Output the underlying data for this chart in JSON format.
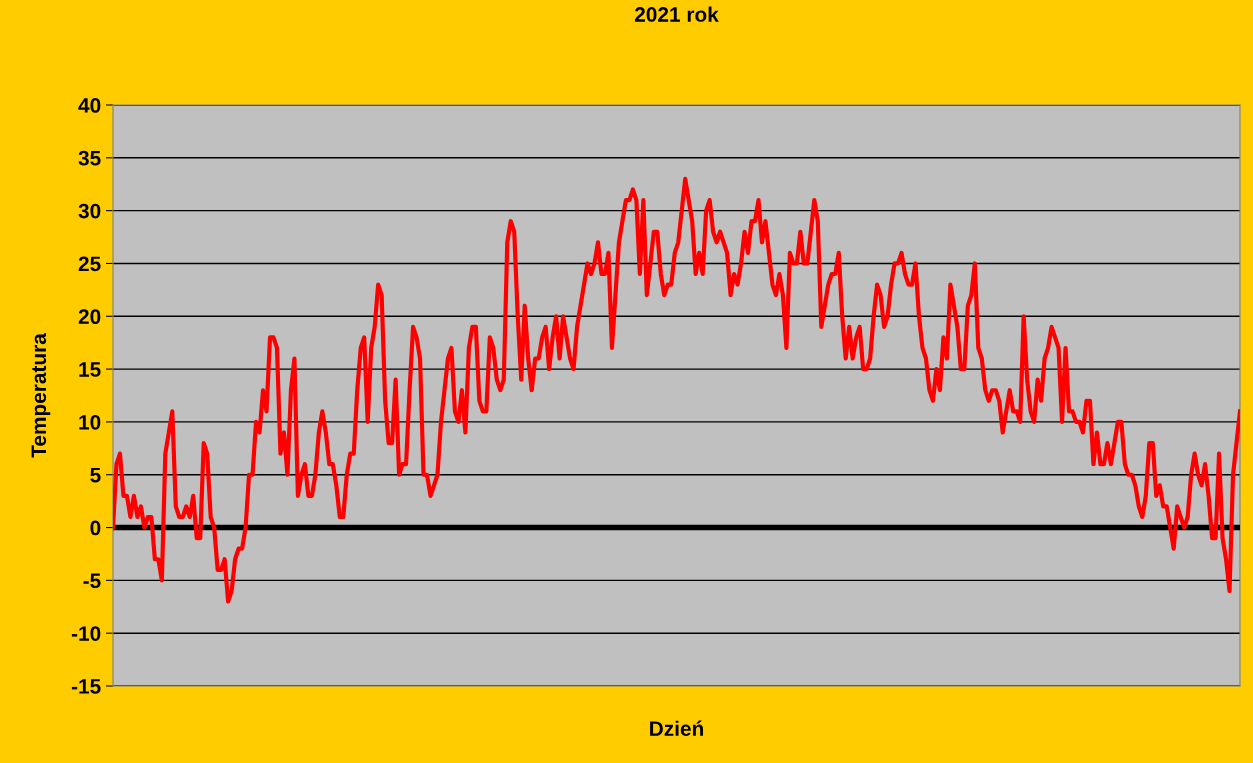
{
  "chart_data": {
    "type": "line",
    "title": "2021 rok",
    "xlabel": "Dzień",
    "ylabel": "Temperatura",
    "categories": [
      null,
      null,
      null,
      null,
      null,
      null,
      null,
      null,
      null,
      null,
      null,
      null,
      null,
      null,
      null,
      null,
      null,
      null,
      null,
      null,
      null,
      null,
      null,
      null,
      null,
      null,
      null,
      null,
      null,
      null,
      null,
      null,
      null,
      null,
      null,
      null,
      null,
      null,
      null,
      null,
      null,
      null,
      null,
      null,
      null,
      null,
      null,
      null,
      null,
      null,
      null,
      null,
      null,
      null,
      null,
      null,
      null,
      null,
      null,
      null,
      null,
      null,
      null,
      null,
      null,
      null,
      null,
      null,
      null,
      null,
      null,
      null,
      null,
      null,
      null,
      null,
      null,
      null,
      null,
      null,
      null,
      null,
      null,
      null,
      null,
      null,
      null,
      null,
      null,
      null,
      null,
      null,
      null,
      null,
      null,
      null,
      null,
      null,
      null,
      null,
      null,
      null,
      null,
      null,
      null,
      null,
      null,
      null,
      null,
      null,
      null,
      null,
      null,
      null,
      null,
      null,
      null,
      null,
      null,
      null,
      null,
      null,
      null,
      null,
      null,
      null,
      null,
      null,
      null,
      null,
      null,
      null,
      null,
      null,
      null,
      null,
      null,
      null,
      null,
      null,
      null,
      null,
      null,
      null,
      null,
      null,
      null,
      null,
      null,
      null,
      null,
      null,
      null,
      null,
      null,
      null,
      null,
      null,
      null,
      null,
      null,
      null,
      null,
      null,
      null,
      null,
      null,
      null,
      null,
      null,
      null,
      null,
      null,
      null,
      null,
      null,
      null,
      null,
      null,
      null,
      null,
      null,
      null,
      null,
      null,
      null,
      null,
      null,
      null,
      null,
      null,
      null,
      null,
      null,
      null,
      null,
      null,
      null,
      null,
      null,
      null,
      null,
      null,
      null,
      null,
      null,
      null,
      null,
      null,
      null,
      null,
      null,
      null,
      null,
      null,
      null,
      null,
      null,
      null,
      null,
      null,
      null,
      null,
      null,
      null,
      null,
      null,
      null,
      null,
      null,
      null,
      null,
      null,
      null,
      null,
      null,
      null,
      null,
      null,
      null,
      null,
      null,
      null,
      null,
      null,
      null,
      null,
      null,
      null,
      null,
      null,
      null,
      null,
      null,
      null,
      null,
      null,
      null,
      null,
      null,
      null,
      null,
      null,
      null,
      null,
      null,
      null,
      null,
      null,
      null,
      null,
      null,
      null,
      null,
      null,
      null,
      null,
      null,
      null,
      null,
      null,
      null,
      null,
      null,
      null,
      null,
      null,
      null,
      null,
      null,
      null,
      null,
      null,
      null,
      null,
      null,
      null,
      null,
      null,
      null,
      null,
      null,
      null,
      null,
      null,
      null,
      null,
      null,
      null,
      null,
      null,
      null,
      null,
      null,
      null,
      null,
      null,
      null,
      null,
      null,
      null,
      null,
      null,
      null
    ],
    "series": [
      {
        "color": "#ff0000",
        "values": [
          0,
          6,
          7,
          3,
          3,
          1,
          3,
          1,
          2,
          0,
          1,
          1,
          -3,
          -3,
          -5,
          7,
          9,
          11,
          2,
          1,
          1,
          2,
          1,
          3,
          -1,
          -1,
          8,
          7,
          1,
          0,
          -4,
          -4,
          -3,
          -7,
          -6,
          -3,
          -2,
          -2,
          0,
          5,
          5,
          10,
          9,
          13,
          11,
          18,
          18,
          17,
          7,
          9,
          5,
          13,
          16,
          3,
          5,
          6,
          3,
          3,
          5,
          9,
          11,
          9,
          6,
          6,
          4,
          1,
          1,
          5,
          7,
          7,
          13,
          17,
          18,
          10,
          17,
          19,
          23,
          22,
          12,
          8,
          8,
          14,
          5,
          6,
          6,
          13,
          19,
          18,
          16,
          5,
          5,
          3,
          4,
          5,
          10,
          13,
          16,
          17,
          11,
          10,
          13,
          9,
          17,
          19,
          19,
          12,
          11,
          11,
          18,
          17,
          14,
          13,
          14,
          27,
          29,
          28,
          20,
          14,
          21,
          16,
          13,
          16,
          16,
          18,
          19,
          15,
          18,
          20,
          16,
          20,
          18,
          16,
          15,
          19,
          21,
          23,
          25,
          24,
          25,
          27,
          24,
          24,
          26,
          17,
          22,
          27,
          29,
          31,
          31,
          32,
          31,
          24,
          31,
          22,
          25,
          28,
          28,
          24,
          22,
          23,
          23,
          26,
          27,
          30,
          33,
          31,
          29,
          24,
          26,
          24,
          30,
          31,
          28,
          27,
          28,
          27,
          26,
          22,
          24,
          23,
          25,
          28,
          26,
          29,
          29,
          31,
          27,
          29,
          26,
          23,
          22,
          24,
          22,
          17,
          26,
          25,
          25,
          28,
          25,
          25,
          28,
          31,
          29,
          19,
          21,
          23,
          24,
          24,
          26,
          20,
          16,
          19,
          16,
          18,
          19,
          15,
          15,
          16,
          20,
          23,
          22,
          19,
          20,
          23,
          25,
          25,
          26,
          24,
          23,
          23,
          25,
          20,
          17,
          16,
          13,
          12,
          15,
          13,
          18,
          16,
          23,
          21,
          19,
          15,
          15,
          21,
          22,
          25,
          17,
          16,
          13,
          12,
          13,
          13,
          12,
          9,
          11,
          13,
          11,
          11,
          10,
          20,
          14,
          11,
          10,
          14,
          12,
          16,
          17,
          19,
          18,
          17,
          10,
          17,
          11,
          11,
          10,
          10,
          9,
          12,
          12,
          6,
          9,
          6,
          6,
          8,
          6,
          8,
          10,
          10,
          6,
          5,
          5,
          4,
          2,
          1,
          3,
          8,
          8,
          3,
          4,
          2,
          2,
          0,
          -2,
          2,
          1,
          0,
          1,
          5,
          7,
          5,
          4,
          6,
          3,
          -1,
          -1,
          7,
          -1,
          -3,
          -6,
          5,
          8,
          11
        ]
      }
    ],
    "ylim": [
      -15,
      40
    ],
    "yticks": [
      -15,
      -10,
      -5,
      0,
      5,
      10,
      15,
      20,
      25,
      30,
      35,
      40
    ],
    "grid": "y",
    "tick_labels": "y",
    "legend": false,
    "marker": "none",
    "line_style": "solid",
    "ref_lines": [
      {
        "axis": "y",
        "value": 0,
        "color": "#000000",
        "line_style": "solid"
      }
    ]
  }
}
